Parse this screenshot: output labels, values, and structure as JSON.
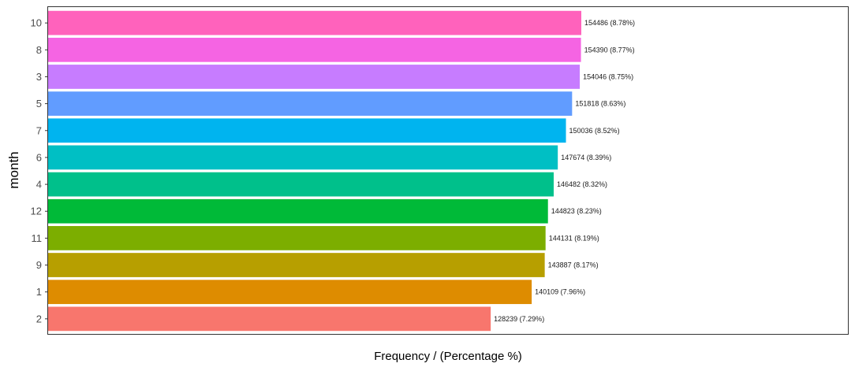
{
  "chart_data": {
    "type": "bar",
    "orientation": "horizontal",
    "title": "",
    "xlabel": "Frequency / (Percentage %)",
    "ylabel": "month",
    "categories": [
      "10",
      "8",
      "3",
      "5",
      "7",
      "6",
      "4",
      "12",
      "11",
      "9",
      "1",
      "2"
    ],
    "values": [
      154486,
      154390,
      154046,
      151818,
      150036,
      147674,
      146482,
      144823,
      144131,
      143887,
      140109,
      128239
    ],
    "percentages": [
      8.78,
      8.77,
      8.75,
      8.63,
      8.52,
      8.39,
      8.32,
      8.23,
      8.19,
      8.17,
      7.96,
      7.29
    ],
    "data_labels": [
      "154486 (8.78%)",
      "154390 (8.77%)",
      "154046 (8.75%)",
      "151818 (8.63%)",
      "150036 (8.52%)",
      "147674 (8.39%)",
      "146482 (8.32%)",
      "144823 (8.23%)",
      "144131 (8.19%)",
      "143887 (8.17%)",
      "140109 (7.96%)",
      "128239 (7.29%)"
    ],
    "colors": [
      "#FF62BC",
      "#F564E3",
      "#C77CFF",
      "#619CFF",
      "#00B4EF",
      "#00BFC4",
      "#00C08B",
      "#00BA38",
      "#7CAE00",
      "#B79F00",
      "#DE8C00",
      "#F8766D"
    ],
    "xlim": [
      0,
      197000
    ],
    "x_ticks_shown": false,
    "grid": false,
    "legend": "none",
    "panel_border_color": "#333333"
  }
}
